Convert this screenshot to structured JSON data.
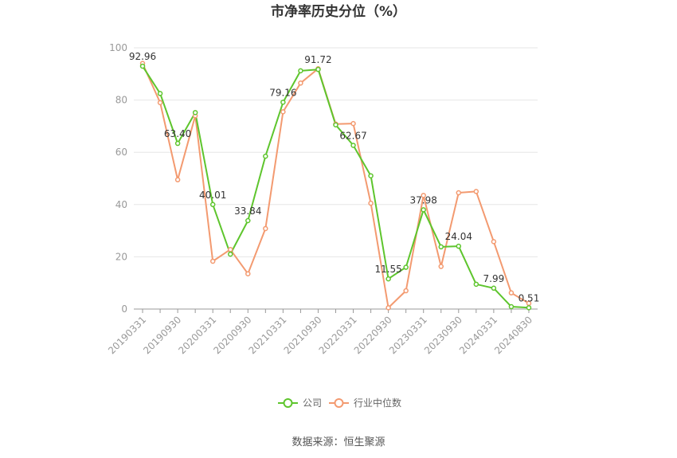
{
  "chart_data": {
    "type": "line",
    "title": "市净率历史分位（%）",
    "ylim": [
      0,
      100
    ],
    "yticks": [
      0,
      20,
      40,
      60,
      80,
      100
    ],
    "x": [
      "20190331",
      "20190630",
      "20190930",
      "20191231",
      "20200331",
      "20200630",
      "20200930",
      "20201231",
      "20210331",
      "20210630",
      "20210930",
      "20211231",
      "20220331",
      "20220630",
      "20220930",
      "20221231",
      "20230331",
      "20230630",
      "20230930",
      "20231231",
      "20240331",
      "20240630",
      "20240830"
    ],
    "xtick_labels": [
      "20190331",
      "20190930",
      "20200331",
      "20200930",
      "20210331",
      "20210930",
      "20220331",
      "20220930",
      "20230331",
      "20230930",
      "20240331",
      "20240830"
    ],
    "series": [
      {
        "name": "公司",
        "color": "#5ec52d",
        "values": [
          92.96,
          82.5,
          63.4,
          75.2,
          40.01,
          21.0,
          33.84,
          58.5,
          79.16,
          91.2,
          91.72,
          70.5,
          62.67,
          51.0,
          11.55,
          16.0,
          37.98,
          23.8,
          24.04,
          9.5,
          7.99,
          0.9,
          0.51
        ],
        "labels": {
          "0": "92.96",
          "2": "63.40",
          "4": "40.01",
          "6": "33.84",
          "8": "79.16",
          "10": "91.72",
          "12": "62.67",
          "14": "11.55",
          "16": "37.98",
          "18": "24.04",
          "20": "7.99",
          "22": "0.51"
        }
      },
      {
        "name": "行业中位数",
        "color": "#f39a70",
        "values": [
          94.0,
          79.0,
          49.5,
          74.0,
          18.3,
          22.8,
          13.5,
          30.8,
          75.5,
          86.5,
          92.0,
          70.8,
          71.0,
          40.5,
          0.5,
          7.0,
          43.5,
          16.3,
          44.5,
          45.0,
          25.8,
          6.2,
          2.2
        ]
      }
    ]
  },
  "source": "数据来源：恒生聚源"
}
